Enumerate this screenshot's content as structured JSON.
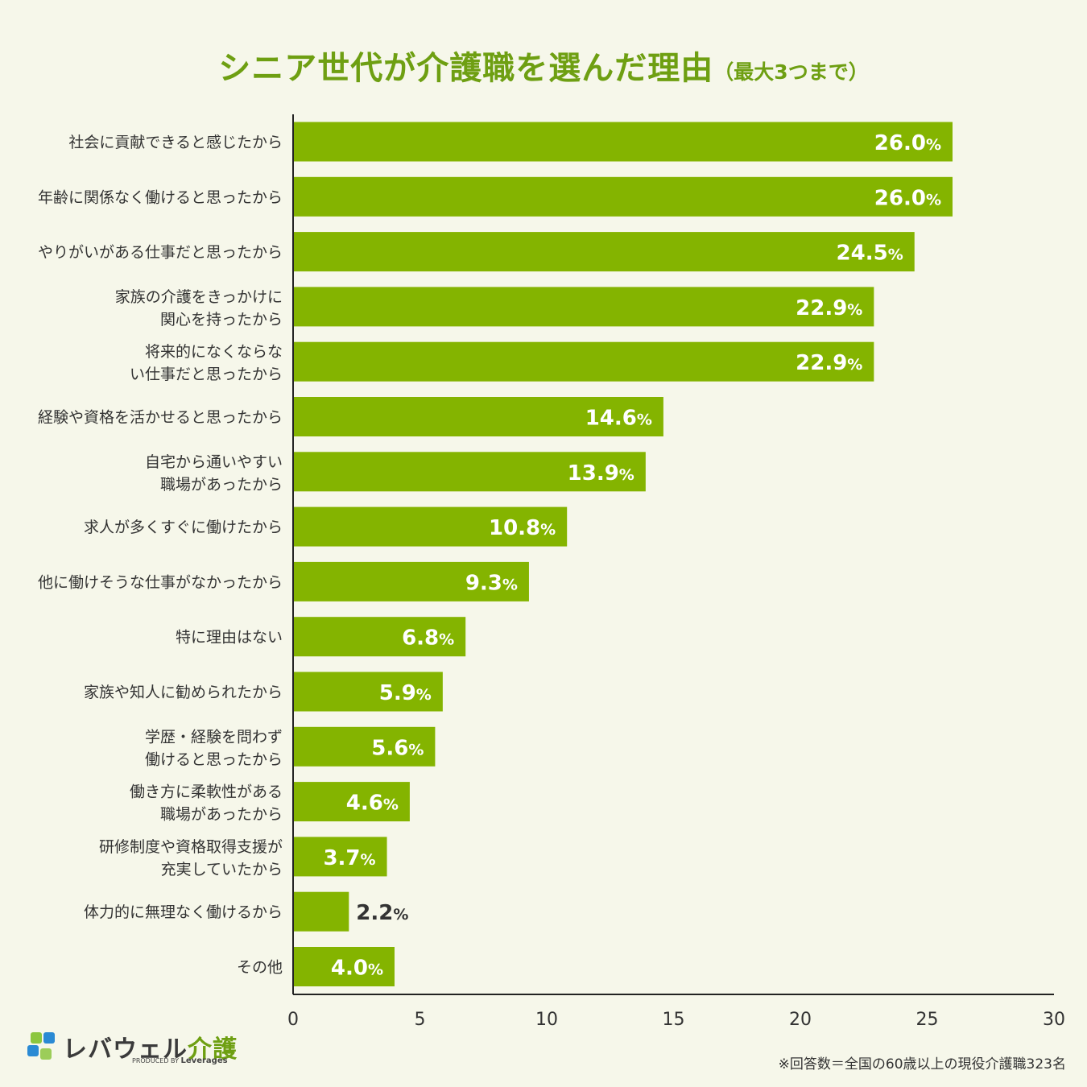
{
  "title": {
    "main": "シニア世代が介護職を選んだ理由",
    "sub": "（最大3つまで）"
  },
  "chart_data": {
    "type": "bar",
    "orientation": "horizontal",
    "title": "シニア世代が介護職を選んだ理由（最大3つまで）",
    "xlim": [
      0,
      30
    ],
    "x_ticks": [
      0,
      5,
      10,
      15,
      20,
      25,
      30
    ],
    "value_suffix": "%",
    "bar_color": "#84b400",
    "categories": [
      "社会に貢献できると感じたから",
      "年齢に関係なく働けると思ったから",
      "やりがいがある仕事だと思ったから",
      "家族の介護をきっかけに\n関心を持ったから",
      "将来的になくならな\nい仕事だと思ったから",
      "経験や資格を活かせると思ったから",
      "自宅から通いやすい\n職場があったから",
      "求人が多くすぐに働けたから",
      "他に働けそうな仕事がなかったから",
      "特に理由はない",
      "家族や知人に勧められたから",
      "学歴・経験を問わず\n働けると思ったから",
      "働き方に柔軟性がある\n職場があったから",
      "研修制度や資格取得支援が\n充実していたから",
      "体力的に無理なく働けるから",
      "その他"
    ],
    "values": [
      26.0,
      26.0,
      24.5,
      22.9,
      22.9,
      14.6,
      13.9,
      10.8,
      9.3,
      6.8,
      5.9,
      5.6,
      4.6,
      3.7,
      2.2,
      4.0
    ]
  },
  "brand": {
    "name_part1": "レバウェル",
    "name_part2": "介護",
    "produced_by": "PRODUCED BY",
    "produced_company": "Leverages"
  },
  "footnote": "※回答数＝全国の60歳以上の現役介護職323名",
  "colors": {
    "title": "#6e9f12",
    "bar": "#84b400",
    "background": "#f6f7ea",
    "logo_blue": "#2a8ad4",
    "logo_green": "#8cc63f"
  }
}
